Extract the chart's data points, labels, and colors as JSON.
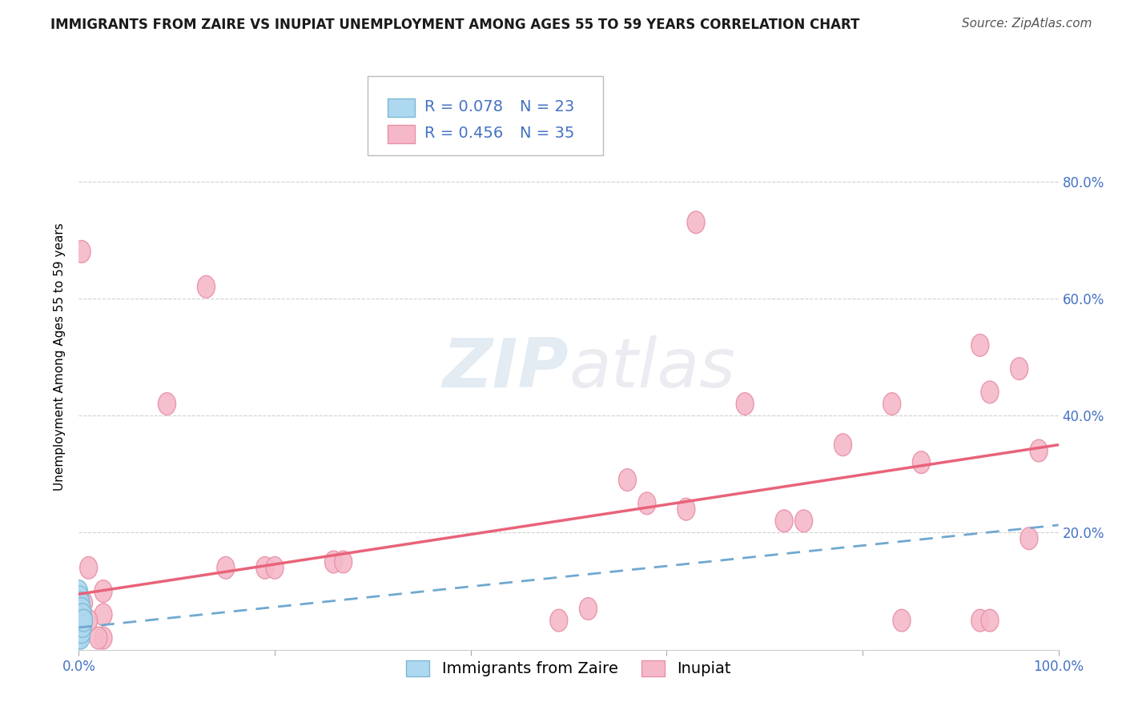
{
  "title": "IMMIGRANTS FROM ZAIRE VS INUPIAT UNEMPLOYMENT AMONG AGES 55 TO 59 YEARS CORRELATION CHART",
  "source": "Source: ZipAtlas.com",
  "ylabel": "Unemployment Among Ages 55 to 59 years",
  "watermark_zip": "ZIP",
  "watermark_atlas": "atlas",
  "legend_zaire": {
    "R": 0.078,
    "N": 23,
    "color": "#add8f0",
    "edge_color": "#7eb8d4",
    "line_color": "#6fa8d0",
    "line_style": "dashed"
  },
  "legend_inupiat": {
    "R": 0.456,
    "N": 35,
    "color": "#f5b8c8",
    "edge_color": "#e890a8",
    "line_color": "#e8637a",
    "line_style": "solid"
  },
  "xlim": [
    0.0,
    1.0
  ],
  "ylim": [
    0.0,
    1.0
  ],
  "ytick_positions": [
    0.2,
    0.4,
    0.6,
    0.8
  ],
  "background_color": "#ffffff",
  "grid_color": "#d0d0d0",
  "inupiat_points": [
    [
      0.003,
      0.68
    ],
    [
      0.13,
      0.62
    ],
    [
      0.09,
      0.42
    ],
    [
      0.63,
      0.73
    ],
    [
      0.92,
      0.52
    ],
    [
      0.93,
      0.44
    ],
    [
      0.96,
      0.48
    ],
    [
      0.68,
      0.42
    ],
    [
      0.83,
      0.42
    ],
    [
      0.78,
      0.35
    ],
    [
      0.86,
      0.32
    ],
    [
      0.97,
      0.19
    ],
    [
      0.58,
      0.25
    ],
    [
      0.62,
      0.24
    ],
    [
      0.72,
      0.22
    ],
    [
      0.74,
      0.22
    ],
    [
      0.56,
      0.29
    ],
    [
      0.98,
      0.34
    ],
    [
      0.26,
      0.15
    ],
    [
      0.27,
      0.15
    ],
    [
      0.49,
      0.05
    ],
    [
      0.52,
      0.07
    ],
    [
      0.84,
      0.05
    ],
    [
      0.92,
      0.05
    ],
    [
      0.93,
      0.05
    ],
    [
      0.15,
      0.14
    ],
    [
      0.19,
      0.14
    ],
    [
      0.2,
      0.14
    ],
    [
      0.025,
      0.1
    ],
    [
      0.025,
      0.06
    ],
    [
      0.025,
      0.02
    ],
    [
      0.02,
      0.02
    ],
    [
      0.01,
      0.14
    ],
    [
      0.01,
      0.05
    ],
    [
      0.005,
      0.08
    ]
  ],
  "zaire_points": [
    [
      0.0,
      0.1
    ],
    [
      0.0,
      0.08
    ],
    [
      0.0,
      0.07
    ],
    [
      0.0,
      0.06
    ],
    [
      0.0,
      0.05
    ],
    [
      0.0,
      0.04
    ],
    [
      0.0,
      0.03
    ],
    [
      0.0,
      0.02
    ],
    [
      0.001,
      0.09
    ],
    [
      0.001,
      0.07
    ],
    [
      0.001,
      0.05
    ],
    [
      0.001,
      0.04
    ],
    [
      0.001,
      0.03
    ],
    [
      0.002,
      0.08
    ],
    [
      0.002,
      0.06
    ],
    [
      0.002,
      0.04
    ],
    [
      0.002,
      0.02
    ],
    [
      0.003,
      0.07
    ],
    [
      0.003,
      0.05
    ],
    [
      0.003,
      0.03
    ],
    [
      0.004,
      0.06
    ],
    [
      0.004,
      0.04
    ],
    [
      0.005,
      0.05
    ]
  ],
  "title_fontsize": 12,
  "axis_label_fontsize": 11,
  "tick_fontsize": 12,
  "legend_fontsize": 14,
  "source_fontsize": 11
}
